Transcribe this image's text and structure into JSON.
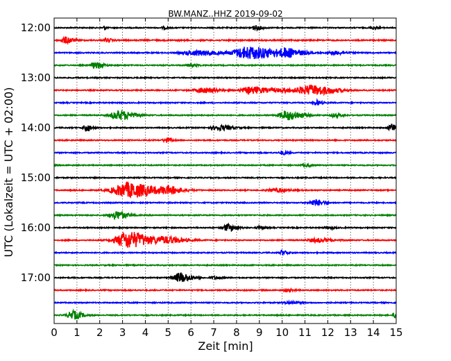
{
  "chart_data": {
    "type": "line",
    "title": "BW.MANZ..HHZ 2019-09-02",
    "xlabel": "Zeit  [min]",
    "ylabel": "UTC (Lokalzeit = UTC + 02:00)",
    "xlim": [
      0,
      15
    ],
    "x_ticks": [
      "0",
      "1",
      "2",
      "3",
      "4",
      "5",
      "6",
      "7",
      "8",
      "9",
      "10",
      "11",
      "12",
      "13",
      "14",
      "15"
    ],
    "y_ticks": [
      "12:00",
      "13:00",
      "14:00",
      "15:00",
      "16:00",
      "17:00"
    ],
    "grid": "vertical dotted",
    "color_cycle": [
      "#000000",
      "#ff0000",
      "#0000ff",
      "#008000"
    ],
    "traces": [
      {
        "start": "12:00",
        "amp": 0.25,
        "events": [
          [
            2.2,
            1.0,
            0.1
          ],
          [
            4.8,
            0.5,
            0.2
          ],
          [
            8.8,
            1.0,
            0.4
          ],
          [
            14.0,
            0.6,
            0.3
          ]
        ]
      },
      {
        "start": "12:15",
        "amp": 0.3,
        "events": [
          [
            0.5,
            1.5,
            0.4
          ],
          [
            2.3,
            0.8,
            0.3
          ]
        ]
      },
      {
        "start": "12:30",
        "amp": 0.25,
        "events": [
          [
            6.2,
            1.2,
            1.2
          ],
          [
            8.5,
            3.0,
            1.5
          ],
          [
            10.2,
            1.8,
            0.8
          ],
          [
            12.3,
            0.8,
            0.6
          ]
        ]
      },
      {
        "start": "12:45",
        "amp": 0.25,
        "events": [
          [
            1.8,
            1.6,
            0.4
          ],
          [
            6.0,
            0.6,
            0.4
          ]
        ]
      },
      {
        "start": "13:00",
        "amp": 0.25,
        "events": []
      },
      {
        "start": "13:15",
        "amp": 0.25,
        "events": [
          [
            6.5,
            1.2,
            0.8
          ],
          [
            8.6,
            1.6,
            1.0
          ],
          [
            11.3,
            2.2,
            1.2
          ],
          [
            10.1,
            0.8,
            1.2
          ]
        ]
      },
      {
        "start": "13:30",
        "amp": 0.25,
        "events": [
          [
            11.5,
            1.2,
            0.3
          ]
        ]
      },
      {
        "start": "13:45",
        "amp": 0.25,
        "events": [
          [
            2.8,
            2.2,
            0.8
          ],
          [
            10.2,
            2.2,
            0.8
          ],
          [
            12.3,
            0.8,
            0.4
          ]
        ]
      },
      {
        "start": "14:00",
        "amp": 0.25,
        "events": [
          [
            1.4,
            1.8,
            0.3
          ],
          [
            7.2,
            1.2,
            0.7
          ],
          [
            14.8,
            1.8,
            0.3
          ]
        ]
      },
      {
        "start": "14:15",
        "amp": 0.25,
        "events": [
          [
            4.9,
            1.0,
            0.3
          ]
        ]
      },
      {
        "start": "14:30",
        "amp": 0.25,
        "events": [
          [
            10.0,
            0.9,
            0.3
          ]
        ]
      },
      {
        "start": "14:45",
        "amp": 0.25,
        "events": [
          [
            11.0,
            0.7,
            0.3
          ]
        ]
      },
      {
        "start": "15:00",
        "amp": 0.25,
        "events": []
      },
      {
        "start": "15:15",
        "amp": 0.25,
        "events": [
          [
            3.2,
            3.6,
            1.5
          ],
          [
            5.0,
            1.4,
            0.8
          ],
          [
            9.7,
            0.8,
            0.7
          ]
        ]
      },
      {
        "start": "15:30",
        "amp": 0.25,
        "events": [
          [
            11.4,
            1.4,
            0.5
          ]
        ]
      },
      {
        "start": "15:45",
        "amp": 0.25,
        "events": [
          [
            2.7,
            2.0,
            0.6
          ]
        ]
      },
      {
        "start": "16:00",
        "amp": 0.25,
        "events": [
          [
            7.6,
            1.6,
            0.5
          ],
          [
            9.0,
            0.6,
            0.3
          ],
          [
            12.0,
            0.5,
            0.4
          ]
        ]
      },
      {
        "start": "16:15",
        "amp": 0.25,
        "events": [
          [
            3.2,
            4.0,
            1.2
          ],
          [
            4.9,
            1.4,
            1.0
          ],
          [
            11.5,
            0.9,
            0.8
          ]
        ]
      },
      {
        "start": "16:30",
        "amp": 0.25,
        "events": [
          [
            10.0,
            1.1,
            0.3
          ]
        ]
      },
      {
        "start": "16:45",
        "amp": 0.25,
        "events": []
      },
      {
        "start": "17:00",
        "amp": 0.25,
        "events": [
          [
            5.5,
            2.2,
            0.6
          ],
          [
            7.0,
            0.6,
            0.4
          ]
        ]
      },
      {
        "start": "17:15",
        "amp": 0.25,
        "events": [
          [
            10.2,
            0.6,
            0.4
          ]
        ]
      },
      {
        "start": "17:30",
        "amp": 0.25,
        "events": [
          [
            10.3,
            0.6,
            0.5
          ]
        ]
      },
      {
        "start": "17:45",
        "amp": 0.25,
        "events": [
          [
            0.8,
            2.0,
            0.5
          ],
          [
            14.9,
            1.2,
            0.1
          ]
        ]
      }
    ]
  }
}
